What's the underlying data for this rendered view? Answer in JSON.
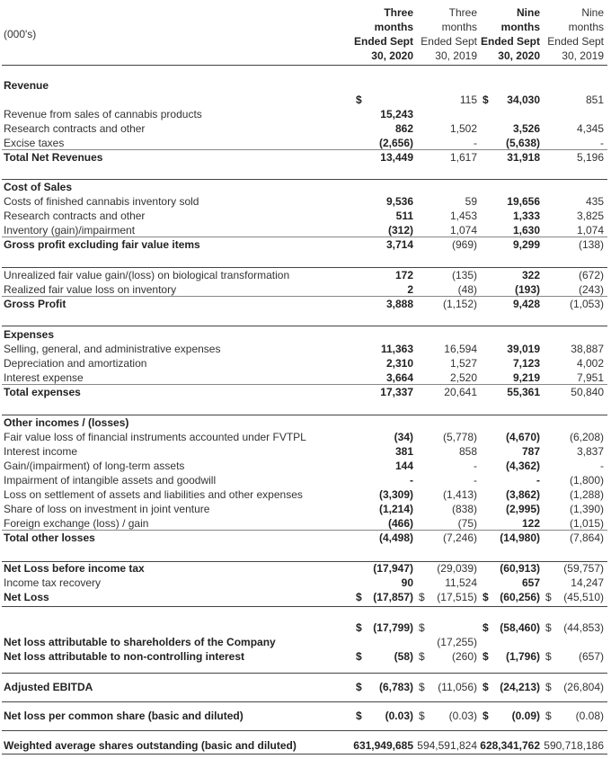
{
  "header": {
    "unit_label": "(000's)",
    "columns": [
      [
        "Three",
        "months",
        "Ended Sept",
        "30, 2020"
      ],
      [
        "Three",
        "months",
        "Ended Sept",
        "30, 2019"
      ],
      [
        "Nine",
        "months",
        "Ended Sept",
        "30, 2020"
      ],
      [
        "Nine",
        "months",
        "Ended Sept",
        "30, 2019"
      ]
    ]
  },
  "sections": [
    {
      "heading": "Revenue",
      "rows": [
        {
          "cells": [
            [
              "$"
            ],
            "115",
            [
              "$",
              "34,030"
            ],
            "851"
          ]
        },
        {
          "label": "Revenue from sales of cannabis products",
          "cells": [
            "15,243",
            null,
            null,
            null
          ]
        },
        {
          "label": "Research contracts and other",
          "cells": [
            "862",
            "1,502",
            "3,526",
            "4,345"
          ]
        },
        {
          "label": "Excise taxes",
          "cells": [
            "(2,656)",
            "-",
            "(5,638)",
            "-"
          ]
        },
        {
          "label": "Total Net Revenues",
          "total": true,
          "cells": [
            "13,449",
            "1,617",
            "31,918",
            "5,196"
          ]
        }
      ]
    },
    {
      "heading": "Cost of Sales",
      "rows": [
        {
          "label": "Costs of finished cannabis inventory sold",
          "cells": [
            "9,536",
            "59",
            "19,656",
            "435"
          ]
        },
        {
          "label": "Research contracts and other",
          "cells": [
            "511",
            "1,453",
            "1,333",
            "3,825"
          ]
        },
        {
          "label": "Inventory (gain)/impairment",
          "cells": [
            "(312)",
            "1,074",
            "1,630",
            "1,074"
          ]
        },
        {
          "label": "Gross profit excluding fair value items",
          "total": true,
          "cells": [
            "3,714",
            "(969)",
            "9,299",
            "(138)"
          ]
        }
      ]
    },
    {
      "rows": [
        {
          "label": "Unrealized fair value gain/(loss) on biological transformation",
          "cells": [
            "172",
            "(135)",
            "322",
            "(672)"
          ]
        },
        {
          "label": "Realized fair value loss on inventory",
          "cells": [
            "2",
            "(48)",
            "(193)",
            "(243)"
          ]
        },
        {
          "label": "Gross Profit",
          "total": true,
          "cells": [
            "3,888",
            "(1,152)",
            "9,428",
            "(1,053)"
          ]
        }
      ]
    },
    {
      "heading": "Expenses",
      "rows": [
        {
          "label": "Selling, general, and administrative expenses",
          "cells": [
            "11,363",
            "16,594",
            "39,019",
            "38,887"
          ]
        },
        {
          "label": "Depreciation and amortization",
          "cells": [
            "2,310",
            "1,527",
            "7,123",
            "4,002"
          ]
        },
        {
          "label": "Interest expense",
          "cells": [
            "3,664",
            "2,520",
            "9,219",
            "7,951"
          ]
        },
        {
          "label": "Total expenses",
          "total": true,
          "cells": [
            "17,337",
            "20,641",
            "55,361",
            "50,840"
          ]
        }
      ]
    },
    {
      "heading": "Other incomes / (losses)",
      "rows": [
        {
          "label": "Fair value loss of financial instruments accounted under FVTPL",
          "cells": [
            "(34)",
            "(5,778)",
            "(4,670)",
            "(6,208)"
          ]
        },
        {
          "label": "Interest income",
          "cells": [
            "381",
            "858",
            "787",
            "3,837"
          ]
        },
        {
          "label": "Gain/(impairment) of long-term assets",
          "cells": [
            "144",
            "-",
            "(4,362)",
            "-"
          ]
        },
        {
          "label": "Impairment of intangible assets and goodwill",
          "cells": [
            "-",
            "-",
            "-",
            "(1,800)"
          ]
        },
        {
          "label": "Loss on settlement of assets and liabilities and other expenses",
          "cells": [
            "(3,309)",
            "(1,413)",
            "(3,862)",
            "(1,288)"
          ]
        },
        {
          "label": "Share of loss on investment in joint venture",
          "cells": [
            "(1,214)",
            "(838)",
            "(2,995)",
            "(1,390)"
          ]
        },
        {
          "label": "Foreign exchange (loss) / gain",
          "cells": [
            "(466)",
            "(75)",
            "122",
            "(1,015)"
          ]
        },
        {
          "label": "Total other losses",
          "total": true,
          "cells": [
            "(4,498)",
            "(7,246)",
            "(14,980)",
            "(7,864)"
          ]
        }
      ]
    },
    {
      "rows": [
        {
          "label": "Net Loss before income tax",
          "bold": true,
          "cells": [
            "(17,947)",
            "(29,039)",
            "(60,913)",
            "(59,757)"
          ]
        },
        {
          "label": "Income tax recovery",
          "cells": [
            "90",
            "11,524",
            "657",
            "14,247"
          ]
        },
        {
          "label": "Net Loss",
          "total": true,
          "cells": [
            [
              "$",
              "(17,857)"
            ],
            [
              "$",
              "(17,515)"
            ],
            [
              "$",
              "(60,256)"
            ],
            [
              "$",
              "(45,510)"
            ]
          ]
        }
      ]
    },
    {
      "rows": [
        {
          "cells": [
            [
              "$",
              "(17,799)"
            ],
            [
              "$"
            ],
            [
              "$",
              "(58,460)"
            ],
            [
              "$",
              "(44,853)"
            ]
          ]
        },
        {
          "label": "Net loss attributable to shareholders of the Company",
          "bold": true,
          "cells": [
            null,
            "(17,255)",
            null,
            null
          ]
        },
        {
          "label": "Net loss attributable to non-controlling interest",
          "bold": true,
          "cells": [
            [
              "$",
              "(58)"
            ],
            [
              "$",
              "(260)"
            ],
            [
              "$",
              "(1,796)"
            ],
            [
              "$",
              "(657)"
            ]
          ]
        }
      ]
    },
    {
      "rows": [
        {
          "label": "Adjusted EBITDA",
          "bold": true,
          "cells": [
            [
              "$",
              "(6,783)"
            ],
            [
              "$",
              "(11,056)"
            ],
            [
              "$",
              "(24,213)"
            ],
            [
              "$",
              "(26,804)"
            ]
          ]
        }
      ]
    },
    {
      "rows": [
        {
          "label": "Net loss per common share (basic and diluted)",
          "bold": true,
          "cells": [
            [
              "$",
              "(0.03)"
            ],
            [
              "$",
              "(0.03)"
            ],
            [
              "$",
              "(0.09)"
            ],
            [
              "$",
              "(0.08)"
            ]
          ]
        }
      ]
    },
    {
      "rows": [
        {
          "label": "Weighted average shares outstanding (basic and diluted)",
          "bold": true,
          "cells": [
            "631,949,685",
            "594,591,824",
            "628,341,762",
            "590,718,186"
          ]
        }
      ]
    }
  ]
}
